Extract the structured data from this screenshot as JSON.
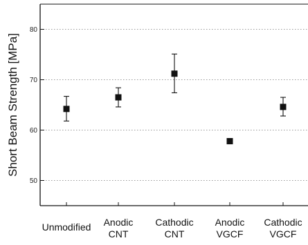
{
  "chart_data": {
    "type": "scatter",
    "title": "",
    "xlabel": "",
    "ylabel": "Short Beam Strength [MPa]",
    "ylim": [
      45,
      85
    ],
    "yticks": [
      50,
      60,
      70,
      80
    ],
    "grid": "horizontal dotted",
    "marker_color": "#111111",
    "categories": [
      {
        "lines": [
          "Unmodified"
        ]
      },
      {
        "lines": [
          "Anodic",
          "CNT"
        ]
      },
      {
        "lines": [
          "Cathodic",
          "CNT"
        ]
      },
      {
        "lines": [
          "Anodic",
          "VGCF"
        ]
      },
      {
        "lines": [
          "Cathodic",
          "VGCF"
        ]
      }
    ],
    "points": [
      {
        "value": 64.2,
        "err_low": 61.8,
        "err_high": 66.7
      },
      {
        "value": 66.5,
        "err_low": 64.6,
        "err_high": 68.4
      },
      {
        "value": 71.2,
        "err_low": 67.4,
        "err_high": 75.1
      },
      {
        "value": 57.8,
        "err_low": 57.3,
        "err_high": 58.3
      },
      {
        "value": 64.6,
        "err_low": 62.8,
        "err_high": 66.5
      }
    ]
  }
}
